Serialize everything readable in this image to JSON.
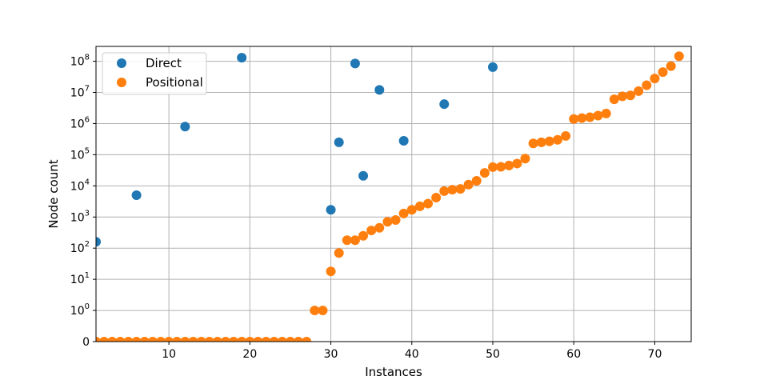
{
  "chart_data": {
    "type": "scatter",
    "title": "",
    "xlabel": "Instances",
    "ylabel": "Node count",
    "xlim": [
      1,
      74.5
    ],
    "y_scale": "symlog",
    "ylim": [
      0,
      300000000
    ],
    "xticks": [
      10,
      20,
      30,
      40,
      50,
      60,
      70
    ],
    "yticks": [
      {
        "value": 0,
        "label": "0"
      },
      {
        "value": 1,
        "label": "10",
        "exp": "0"
      },
      {
        "value": 10,
        "label": "10",
        "exp": "1"
      },
      {
        "value": 100,
        "label": "10",
        "exp": "2"
      },
      {
        "value": 1000,
        "label": "10",
        "exp": "3"
      },
      {
        "value": 10000,
        "label": "10",
        "exp": "4"
      },
      {
        "value": 100000,
        "label": "10",
        "exp": "5"
      },
      {
        "value": 1000000,
        "label": "10",
        "exp": "6"
      },
      {
        "value": 10000000,
        "label": "10",
        "exp": "7"
      },
      {
        "value": 100000000,
        "label": "10",
        "exp": "8"
      }
    ],
    "grid": true,
    "legend_position": "upper-left",
    "series": [
      {
        "name": "Direct",
        "color": "#1f77b4",
        "points": [
          [
            1,
            160
          ],
          [
            6,
            5000
          ],
          [
            12,
            800000
          ],
          [
            19,
            130000000
          ],
          [
            30,
            1700
          ],
          [
            31,
            250000
          ],
          [
            33,
            85000000
          ],
          [
            34,
            21000
          ],
          [
            36,
            12000000
          ],
          [
            39,
            280000
          ],
          [
            44,
            4200000
          ],
          [
            50,
            65000000
          ]
        ]
      },
      {
        "name": "Positional",
        "color": "#ff7f0e",
        "points": [
          [
            1,
            0
          ],
          [
            2,
            0
          ],
          [
            3,
            0
          ],
          [
            4,
            0
          ],
          [
            5,
            0
          ],
          [
            6,
            0
          ],
          [
            7,
            0
          ],
          [
            8,
            0
          ],
          [
            9,
            0
          ],
          [
            10,
            0
          ],
          [
            11,
            0
          ],
          [
            12,
            0
          ],
          [
            13,
            0
          ],
          [
            14,
            0
          ],
          [
            15,
            0
          ],
          [
            16,
            0
          ],
          [
            17,
            0
          ],
          [
            18,
            0
          ],
          [
            19,
            0
          ],
          [
            20,
            0
          ],
          [
            21,
            0
          ],
          [
            22,
            0
          ],
          [
            23,
            0
          ],
          [
            24,
            0
          ],
          [
            25,
            0
          ],
          [
            26,
            0
          ],
          [
            27,
            0
          ],
          [
            28,
            1
          ],
          [
            29,
            1
          ],
          [
            30,
            18
          ],
          [
            31,
            70
          ],
          [
            32,
            180
          ],
          [
            33,
            180
          ],
          [
            34,
            250
          ],
          [
            35,
            370
          ],
          [
            36,
            450
          ],
          [
            37,
            700
          ],
          [
            38,
            800
          ],
          [
            39,
            1300
          ],
          [
            40,
            1700
          ],
          [
            41,
            2200
          ],
          [
            42,
            2700
          ],
          [
            43,
            4200
          ],
          [
            44,
            6800
          ],
          [
            45,
            7500
          ],
          [
            46,
            8000
          ],
          [
            47,
            11000
          ],
          [
            48,
            14500
          ],
          [
            49,
            26000
          ],
          [
            50,
            40000
          ],
          [
            51,
            41000
          ],
          [
            52,
            45000
          ],
          [
            53,
            52000
          ],
          [
            54,
            75000
          ],
          [
            55,
            230000
          ],
          [
            56,
            250000
          ],
          [
            57,
            270000
          ],
          [
            58,
            300000
          ],
          [
            59,
            400000
          ],
          [
            60,
            1400000
          ],
          [
            61,
            1500000
          ],
          [
            62,
            1600000
          ],
          [
            63,
            1800000
          ],
          [
            64,
            2100000
          ],
          [
            65,
            6000000
          ],
          [
            66,
            7500000
          ],
          [
            67,
            8000000
          ],
          [
            68,
            11000000
          ],
          [
            69,
            17000000
          ],
          [
            70,
            28000000
          ],
          [
            71,
            45000000
          ],
          [
            72,
            70000000
          ],
          [
            73,
            145000000
          ]
        ]
      }
    ]
  }
}
